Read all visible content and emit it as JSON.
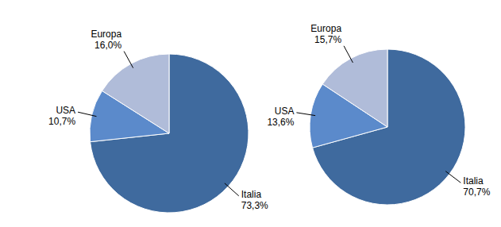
{
  "chart_data": [
    {
      "type": "pie",
      "categories": [
        "Italia",
        "USA",
        "Europa"
      ],
      "values": [
        73.3,
        10.7,
        16.0
      ],
      "value_labels": [
        "73,3%",
        "10,7%",
        "16,0%"
      ],
      "colors": [
        "#3F6A9E",
        "#5B8ACB",
        "#B0BCD9"
      ],
      "data_labels": true
    },
    {
      "type": "pie",
      "categories": [
        "Italia",
        "USA",
        "Europa"
      ],
      "values": [
        70.7,
        13.6,
        15.7
      ],
      "value_labels": [
        "70,7%",
        "13,6%",
        "15,7%"
      ],
      "colors": [
        "#3F6A9E",
        "#5B8ACB",
        "#B0BCD9"
      ],
      "data_labels": true
    }
  ]
}
